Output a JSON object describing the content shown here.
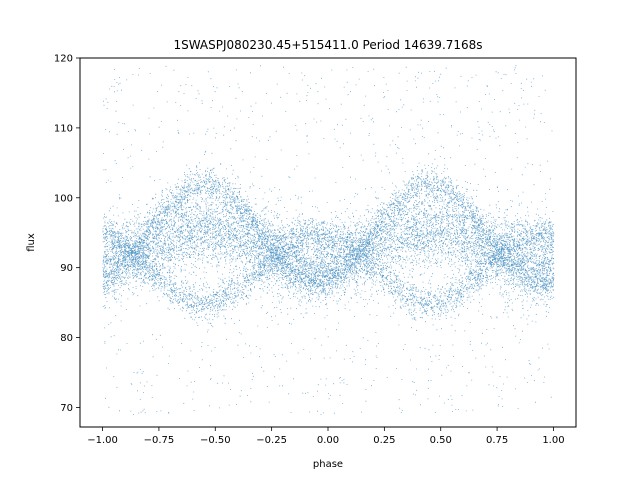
{
  "chart_data": {
    "type": "scatter",
    "title": "1SWASPJ080230.45+515411.0 Period 14639.7168s",
    "xlabel": "phase",
    "ylabel": "flux",
    "xlim": [
      -1.1,
      1.1
    ],
    "ylim": [
      67.2,
      120
    ],
    "xticks": [
      -1.0,
      -0.75,
      -0.5,
      -0.25,
      0.0,
      0.25,
      0.5,
      0.75,
      1.0
    ],
    "xtick_labels": [
      "−1.00",
      "−0.75",
      "−0.50",
      "−0.25",
      "0.00",
      "0.25",
      "0.50",
      "0.75",
      "1.00"
    ],
    "yticks": [
      70,
      80,
      90,
      100,
      110,
      120
    ],
    "ytick_labels": [
      "70",
      "80",
      "90",
      "100",
      "110",
      "120"
    ],
    "grid": false,
    "legend": "none",
    "series": [
      {
        "color": "#1f77b4",
        "marker": "point",
        "x_range": [
          -1.0,
          1.0
        ],
        "period_in_phase": 1.0,
        "components": [
          {
            "kind": "upper-arc",
            "center_flux": 95.0,
            "amplitude": 7.0,
            "spread": 1.2,
            "peak_phase": -0.55
          },
          {
            "kind": "main-band",
            "center_flux": 93.0,
            "amplitude": 2.5,
            "spread": 2.8,
            "peak_phase": -0.55
          },
          {
            "kind": "lower-arc",
            "center_flux": 90.0,
            "amplitude": 5.0,
            "spread": 1.2,
            "peak_phase": -0.05
          },
          {
            "kind": "outliers",
            "flux_range": [
              69,
              119
            ]
          }
        ]
      }
    ]
  }
}
